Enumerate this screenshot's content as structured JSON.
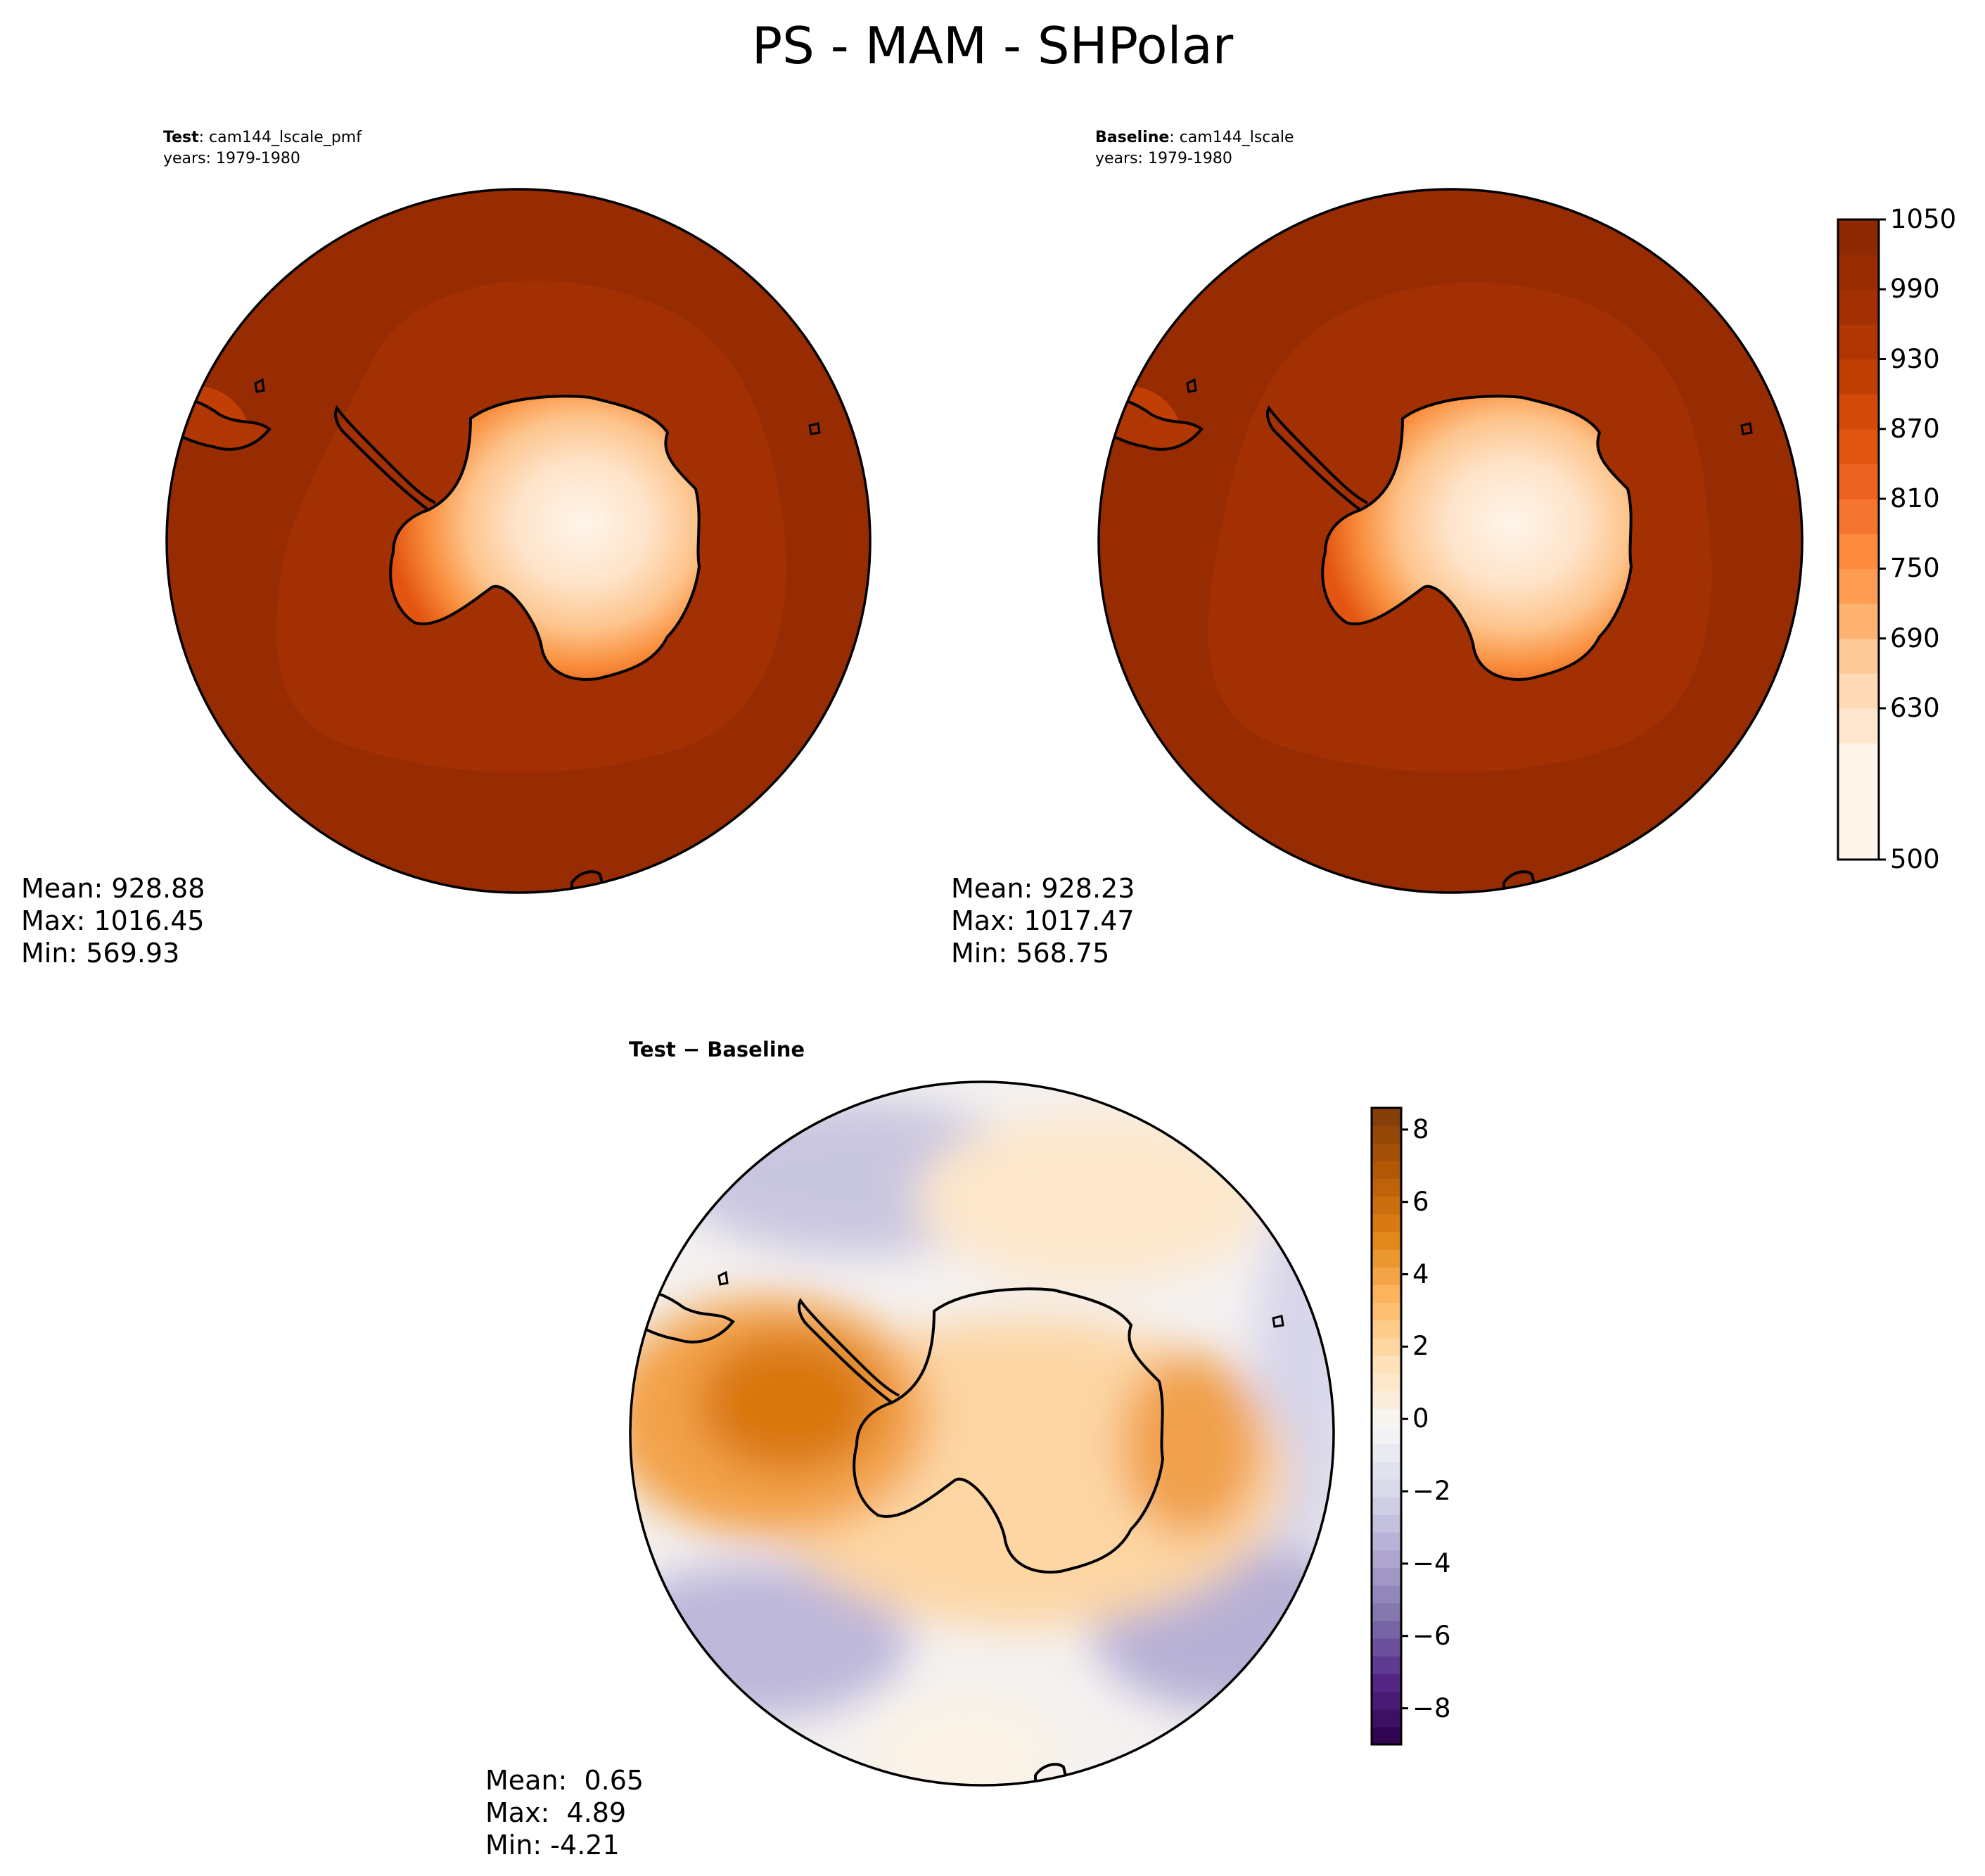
{
  "figure": {
    "title": "PS - MAM - SHPolar"
  },
  "panels": [
    {
      "id": "test",
      "label_bold": "Test",
      "label_rest": ": cam144_lscale_pmf",
      "years": "years: 1979-1980",
      "stats": {
        "mean": "Mean: 928.88",
        "max": "Max: 1016.45",
        "min": "Min: 569.93"
      }
    },
    {
      "id": "baseline",
      "label_bold": "Baseline",
      "label_rest": ": cam144_lscale",
      "years": "years: 1979-1980",
      "stats": {
        "mean": "Mean: 928.23",
        "max": "Max: 1017.47",
        "min": "Min: 568.75"
      }
    },
    {
      "id": "diff",
      "label": "Test − Baseline",
      "stats": {
        "mean": "Mean:  0.65",
        "max": "Max:  4.89",
        "min": "Min: -4.21"
      }
    }
  ],
  "colorbars": {
    "main": {
      "colormap": "Oranges",
      "range": [
        500,
        1050
      ],
      "ticks": [
        "1050",
        "990",
        "930",
        "870",
        "810",
        "750",
        "690",
        "630",
        "500"
      ],
      "tick_values": [
        1050,
        990,
        930,
        870,
        810,
        750,
        690,
        630,
        500
      ],
      "levels": [
        500,
        600,
        630,
        660,
        690,
        720,
        750,
        780,
        810,
        840,
        870,
        900,
        930,
        960,
        990,
        1020,
        1050
      ],
      "colors": [
        "#fff5eb",
        "#fee6ce",
        "#fdd9b5",
        "#fdc997",
        "#fdb271",
        "#fd9c52",
        "#fd8a3e",
        "#f57530",
        "#ec6220",
        "#e25412",
        "#d44a0a",
        "#c13f04",
        "#b03603",
        "#a33003",
        "#972c03",
        "#8d2903"
      ]
    },
    "diff": {
      "colormap": "PuOr_r",
      "range": [
        -9,
        8.6
      ],
      "ticks": [
        "8",
        "6",
        "4",
        "2",
        "0",
        "−2",
        "−4",
        "−6",
        "−8"
      ],
      "tick_values": [
        8,
        6,
        4,
        2,
        0,
        -2,
        -4,
        -6,
        -8
      ],
      "colors": [
        "#2d004b",
        "#542788",
        "#8073ac",
        "#b2abd2",
        "#d8daeb",
        "#f7f7f7",
        "#fee0b6",
        "#fdb863",
        "#e08214",
        "#b35806",
        "#7f3b08"
      ]
    }
  },
  "chart_data": {
    "type": "heatmap",
    "variable": "PS",
    "season": "MAM",
    "region": "SHPolar",
    "projection": "south-polar-stereographic",
    "panels": [
      {
        "name": "Test",
        "case": "cam144_lscale_pmf",
        "years": "1979-1980",
        "mean": 928.88,
        "max": 1016.45,
        "min": 569.93,
        "colorbar_range": [
          500,
          1050
        ]
      },
      {
        "name": "Baseline",
        "case": "cam144_lscale",
        "years": "1979-1980",
        "mean": 928.23,
        "max": 1017.47,
        "min": 568.75,
        "colorbar_range": [
          500,
          1050
        ]
      },
      {
        "name": "Test − Baseline",
        "mean": 0.65,
        "max": 4.89,
        "min": -4.21,
        "colorbar_range": [
          -9,
          8.6
        ]
      }
    ]
  }
}
